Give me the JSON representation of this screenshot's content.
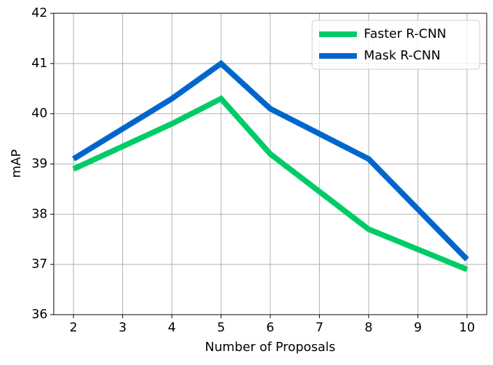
{
  "chart_data": {
    "type": "line",
    "x_label": "Number of Proposals",
    "y_label": "mAP",
    "series": [
      {
        "name": "Faster R-CNN",
        "color": "#00cc66",
        "x": [
          2,
          4,
          5,
          6,
          8,
          10
        ],
        "values": [
          38.9,
          39.8,
          40.3,
          39.2,
          37.7,
          36.9
        ]
      },
      {
        "name": "Mask R-CNN",
        "color": "#0066cc",
        "x": [
          2,
          4,
          5,
          6,
          8,
          10
        ],
        "values": [
          39.1,
          40.3,
          41.0,
          40.1,
          39.1,
          37.1
        ]
      }
    ],
    "xlim": [
      1.6,
      10.4
    ],
    "xticks": [
      2,
      3,
      4,
      5,
      6,
      7,
      8,
      9,
      10
    ],
    "ylim": [
      36,
      42
    ],
    "yticks": [
      36,
      37,
      38,
      39,
      40,
      41,
      42
    ],
    "grid": true,
    "legend": "upper right"
  }
}
